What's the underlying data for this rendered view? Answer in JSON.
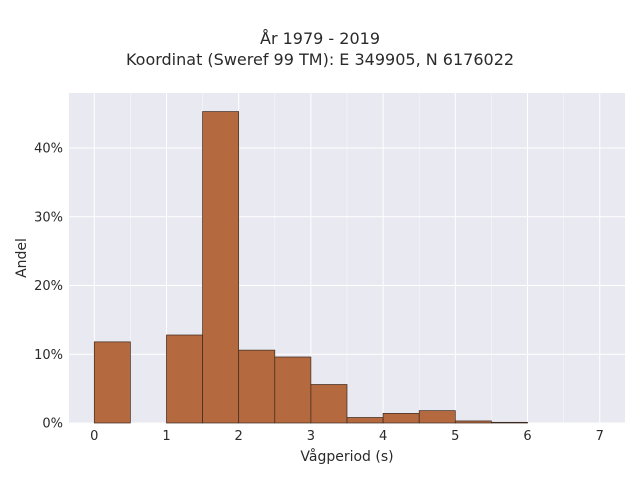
{
  "chart_data": {
    "type": "bar",
    "title_line1": "År 1979 - 2019",
    "title_line2": "Koordinat (Sweref 99 TM): E 349905, N 6176022",
    "xlabel": "Vågperiod (s)",
    "ylabel": "Andel",
    "bin_width": 0.5,
    "bins": [
      {
        "start": 0.0,
        "value": 11.8
      },
      {
        "start": 0.5,
        "value": 0.0
      },
      {
        "start": 1.0,
        "value": 12.8
      },
      {
        "start": 1.5,
        "value": 45.3
      },
      {
        "start": 2.0,
        "value": 10.6
      },
      {
        "start": 2.5,
        "value": 9.6
      },
      {
        "start": 3.0,
        "value": 5.6
      },
      {
        "start": 3.5,
        "value": 0.8
      },
      {
        "start": 4.0,
        "value": 1.4
      },
      {
        "start": 4.5,
        "value": 1.8
      },
      {
        "start": 5.0,
        "value": 0.3
      },
      {
        "start": 5.5,
        "value": 0.1
      }
    ],
    "xlim": [
      -0.35,
      7.35
    ],
    "ylim": [
      0,
      48
    ],
    "x_ticks": [
      0,
      1,
      2,
      3,
      4,
      5,
      6,
      7
    ],
    "y_ticks": [
      0,
      10,
      20,
      30,
      40
    ],
    "y_tick_labels": [
      "0%",
      "10%",
      "20%",
      "30%",
      "40%"
    ],
    "bar_color": "#b5693f",
    "bar_edge_color": "#3a2a20",
    "plot_bg": "#e9e9f1",
    "grid": true
  }
}
